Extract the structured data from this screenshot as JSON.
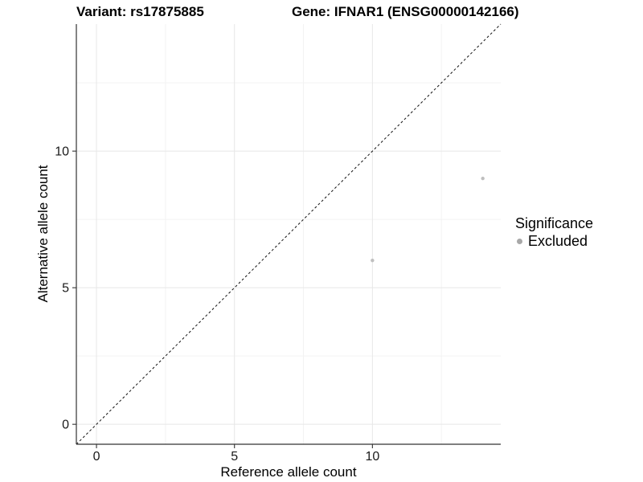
{
  "titles": {
    "variant": "Variant: rs17875885",
    "gene": "Gene: IFNAR1 (ENSG00000142166)"
  },
  "legend": {
    "title": "Significance",
    "items": [
      {
        "label": "Excluded",
        "swatch_color": "#a8a8a8"
      }
    ]
  },
  "chart_data": {
    "type": "scatter",
    "title": "Variant: rs17875885  |  Gene: IFNAR1 (ENSG00000142166)",
    "xlabel": "Reference allele count",
    "ylabel": "Alternative allele count",
    "xlim": [
      -0.73,
      14.65
    ],
    "ylim": [
      -0.73,
      14.65
    ],
    "x_major_ticks": [
      0,
      5,
      10
    ],
    "y_major_ticks": [
      0,
      5,
      10
    ],
    "x_minor_gridlines": [
      2.5,
      7.5,
      12.5
    ],
    "y_minor_gridlines": [
      2.5,
      7.5,
      12.5
    ],
    "grid": "major and minor gridlines on white panel",
    "legend_position": "right-middle",
    "series": [
      {
        "name": "Excluded",
        "significance": "Excluded",
        "color": "#bfbfbf",
        "points": [
          {
            "x": 10,
            "y": 6
          },
          {
            "x": 14,
            "y": 9
          }
        ]
      }
    ],
    "reference_line": {
      "kind": "identity y=x",
      "style": "dashed",
      "color": "#111111"
    }
  },
  "colors": {
    "background": "#ffffff",
    "grid_major": "#e7e7e7",
    "grid_minor": "#f3f3f3",
    "axis": "#333333",
    "point": "#bfbfbf",
    "text": "#000000"
  }
}
